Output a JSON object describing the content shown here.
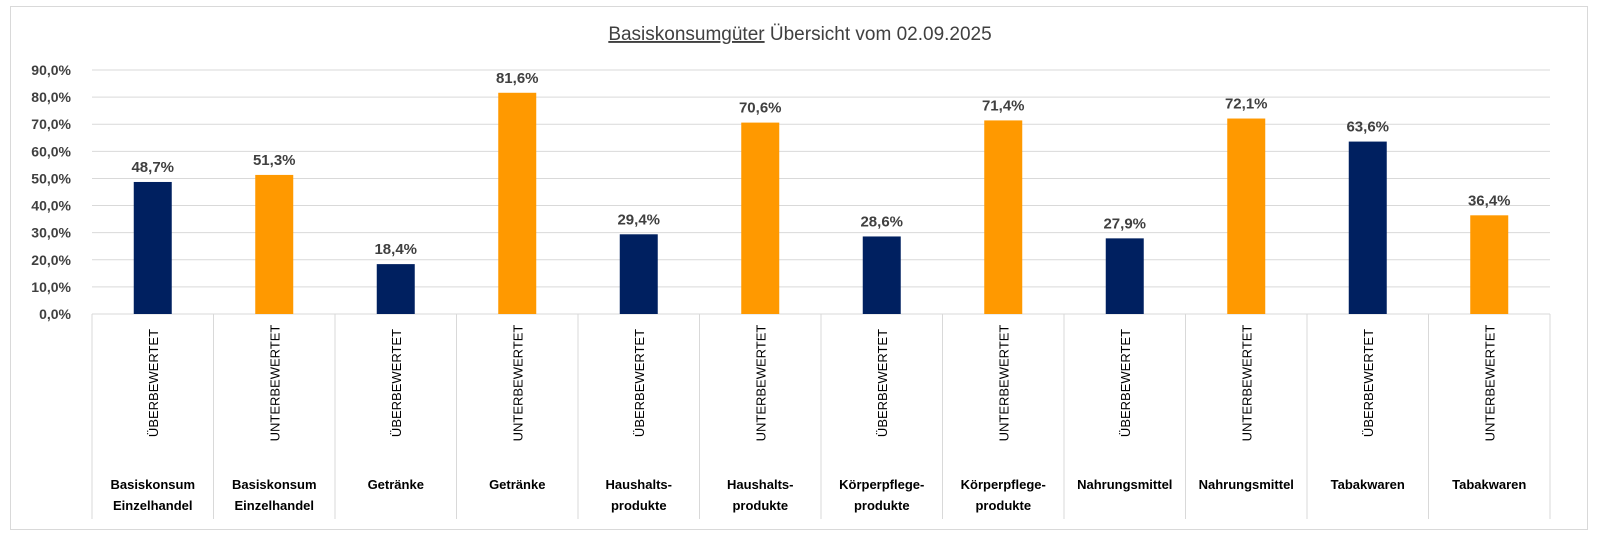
{
  "chart_data": {
    "type": "bar",
    "title": "Basiskonsumgüter Übersicht vom 02.09.2025",
    "title_parts": {
      "underlined": "Basiskonsumgüter",
      "rest": " Übersicht vom 02.09.2025"
    },
    "ylim": [
      0,
      90
    ],
    "yticks": [
      "0,0%",
      "10,0%",
      "20,0%",
      "30,0%",
      "40,0%",
      "50,0%",
      "60,0%",
      "70,0%",
      "80,0%",
      "90,0%"
    ],
    "grid": true,
    "categories": [
      {
        "status": "ÜBERBEWERTET",
        "sector": [
          "Basiskonsum",
          "Einzelhandel"
        ],
        "value": 48.7,
        "label": "48,7%",
        "color": "#002060"
      },
      {
        "status": "UNTERBEWERTET",
        "sector": [
          "Basiskonsum",
          "Einzelhandel"
        ],
        "value": 51.3,
        "label": "51,3%",
        "color": "#FF9900"
      },
      {
        "status": "ÜBERBEWERTET",
        "sector": [
          "Getränke"
        ],
        "value": 18.4,
        "label": "18,4%",
        "color": "#002060"
      },
      {
        "status": "UNTERBEWERTET",
        "sector": [
          "Getränke"
        ],
        "value": 81.6,
        "label": "81,6%",
        "color": "#FF9900"
      },
      {
        "status": "ÜBERBEWERTET",
        "sector": [
          "Haushalts-",
          "produkte"
        ],
        "value": 29.4,
        "label": "29,4%",
        "color": "#002060"
      },
      {
        "status": "UNTERBEWERTET",
        "sector": [
          "Haushalts-",
          "produkte"
        ],
        "value": 70.6,
        "label": "70,6%",
        "color": "#FF9900"
      },
      {
        "status": "ÜBERBEWERTET",
        "sector": [
          "Körperpflege-",
          "produkte"
        ],
        "value": 28.6,
        "label": "28,6%",
        "color": "#002060"
      },
      {
        "status": "UNTERBEWERTET",
        "sector": [
          "Körperpflege-",
          "produkte"
        ],
        "value": 71.4,
        "label": "71,4%",
        "color": "#FF9900"
      },
      {
        "status": "ÜBERBEWERTET",
        "sector": [
          "Nahrungsmittel"
        ],
        "value": 27.9,
        "label": "27,9%",
        "color": "#002060"
      },
      {
        "status": "UNTERBEWERTET",
        "sector": [
          "Nahrungsmittel"
        ],
        "value": 72.1,
        "label": "72,1%",
        "color": "#FF9900"
      },
      {
        "status": "ÜBERBEWERTET",
        "sector": [
          "Tabakwaren"
        ],
        "value": 63.6,
        "label": "63,6%",
        "color": "#002060"
      },
      {
        "status": "UNTERBEWERTET",
        "sector": [
          "Tabakwaren"
        ],
        "value": 36.4,
        "label": "36,4%",
        "color": "#FF9900"
      }
    ]
  }
}
